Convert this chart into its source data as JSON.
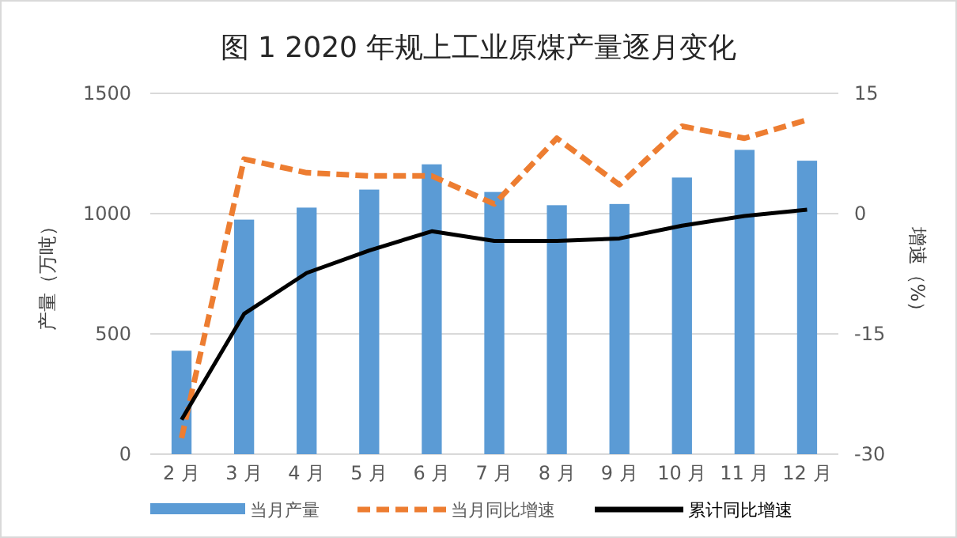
{
  "chart_data": {
    "type": "bar",
    "title": "图 1 2020 年规上工业原煤产量逐月变化",
    "ylabel": "产量（万吨）",
    "y2label": "增速（%）",
    "categories": [
      "2 月",
      "3 月",
      "4 月",
      "5 月",
      "6 月",
      "7 月",
      "8 月",
      "9 月",
      "10 月",
      "11 月",
      "12 月"
    ],
    "series": [
      {
        "name": "当月产量",
        "color": "#5b9bd5",
        "values": [
          430,
          975,
          1025,
          1100,
          1205,
          1090,
          1035,
          1040,
          1150,
          1265,
          1220
        ]
      },
      {
        "name": "当月同比增速",
        "type": "line",
        "axis": "y2",
        "line_style": "dashed",
        "color": "#ed7d31",
        "values": [
          -28,
          6.8,
          5.1,
          4.7,
          4.7,
          1.2,
          9.4,
          3.6,
          10.9,
          9.4,
          11.7
        ]
      },
      {
        "name": "累计同比增速",
        "type": "line",
        "axis": "y2",
        "line_style": "solid",
        "color": "#000000",
        "values": [
          -25.7,
          -12.5,
          -7.4,
          -4.6,
          -2.2,
          -3.4,
          -3.4,
          -3.1,
          -1.5,
          -0.3,
          0.5
        ]
      }
    ],
    "ylim": [
      0,
      1500
    ],
    "yticks": [
      0,
      500,
      1000,
      1500
    ],
    "y2lim": [
      -30,
      15
    ],
    "y2ticks": [
      -30,
      -15,
      0,
      15
    ],
    "grid": "y",
    "legend": "bottom"
  }
}
